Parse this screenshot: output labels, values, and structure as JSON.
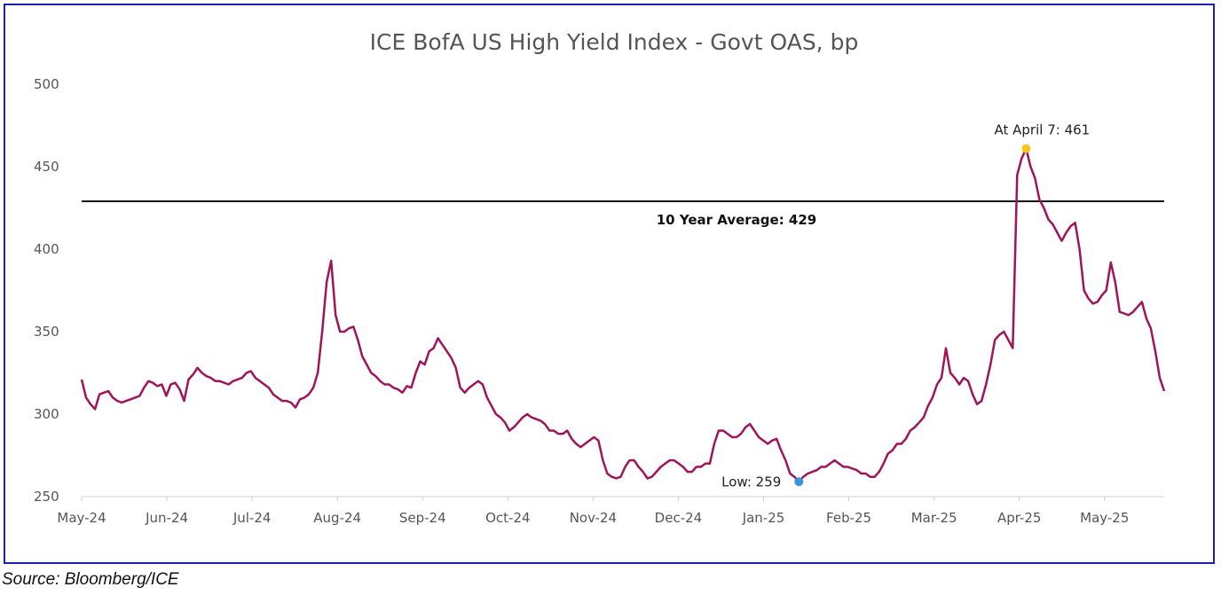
{
  "source_note": "Source: Bloomberg/ICE",
  "chart_data": {
    "type": "line",
    "title": "ICE BofA US High Yield Index - Govt OAS, bp",
    "xlabel": "",
    "ylabel": "",
    "ylim": [
      250,
      500
    ],
    "yticks": [
      250,
      300,
      350,
      400,
      450,
      500
    ],
    "x_tick_labels": [
      "May-24",
      "Jun-24",
      "Jul-24",
      "Aug-24",
      "Sep-24",
      "Oct-24",
      "Nov-24",
      "Dec-24",
      "Jan-25",
      "Feb-25",
      "Mar-25",
      "Apr-25",
      "May-25"
    ],
    "series": [
      {
        "name": "ICE BofA US High Yield Index - Govt OAS",
        "color": "#A0145A",
        "values": [
          321,
          310,
          306,
          303,
          312,
          313,
          314,
          310,
          308,
          307,
          308,
          309,
          310,
          311,
          316,
          320,
          319,
          317,
          318,
          311,
          318,
          319,
          315,
          308,
          321,
          324,
          328,
          325,
          323,
          322,
          320,
          320,
          319,
          318,
          320,
          321,
          322,
          325,
          326,
          322,
          320,
          318,
          316,
          312,
          310,
          308,
          308,
          307,
          304,
          309,
          310,
          312,
          316,
          325,
          350,
          380,
          393,
          360,
          350,
          350,
          352,
          353,
          345,
          335,
          330,
          325,
          323,
          320,
          318,
          318,
          316,
          315,
          313,
          317,
          316,
          325,
          332,
          330,
          338,
          340,
          346,
          342,
          338,
          334,
          328,
          316,
          313,
          316,
          318,
          320,
          318,
          310,
          305,
          300,
          298,
          295,
          290,
          292,
          295,
          298,
          300,
          298,
          297,
          296,
          294,
          290,
          290,
          288,
          288,
          290,
          285,
          282,
          280,
          282,
          284,
          286,
          284,
          272,
          264,
          262,
          261,
          262,
          268,
          272,
          272,
          268,
          265,
          261,
          262,
          265,
          268,
          270,
          272,
          272,
          270,
          268,
          265,
          265,
          268,
          268,
          270,
          270,
          282,
          290,
          290,
          288,
          286,
          286,
          288,
          292,
          294,
          290,
          286,
          284,
          282,
          284,
          285,
          278,
          272,
          264,
          262,
          259,
          262,
          264,
          265,
          266,
          268,
          268,
          270,
          272,
          270,
          268,
          268,
          267,
          266,
          264,
          264,
          262,
          262,
          265,
          270,
          276,
          278,
          282,
          282,
          285,
          290,
          292,
          295,
          298,
          305,
          310,
          318,
          322,
          340,
          325,
          322,
          318,
          322,
          320,
          312,
          306,
          308,
          318,
          330,
          345,
          348,
          350,
          345,
          340,
          445,
          455,
          461,
          450,
          443,
          430,
          425,
          418,
          415,
          410,
          405,
          410,
          414,
          416,
          400,
          375,
          370,
          367,
          368,
          372,
          375,
          392,
          380,
          362,
          361,
          360,
          362,
          365,
          368,
          358,
          352,
          338,
          322,
          314
        ],
        "x_range_months": [
          0,
          12.7
        ]
      },
      {
        "name": "10 Year Average: 429",
        "value": 429
      }
    ],
    "annotations": {
      "peak": "At April 7: 461",
      "low": "Low: 259",
      "average": "10 Year Average: 429"
    },
    "marker_colors": {
      "peak": "#F5C518",
      "low": "#3B95D6"
    },
    "avg_line_color": "#111111"
  }
}
